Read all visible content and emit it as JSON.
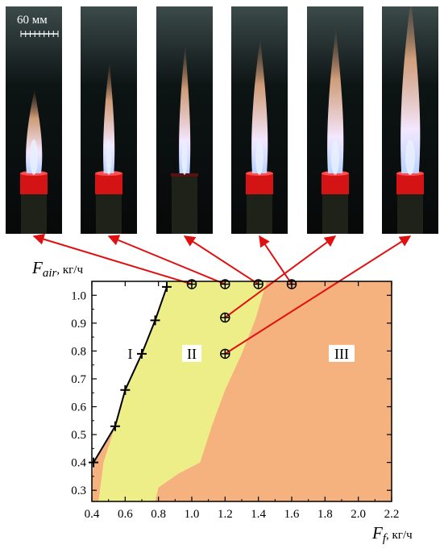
{
  "scale_bar": {
    "label": "60 мм"
  },
  "photos": [
    {
      "fuel_flow": 1.0,
      "air_flow": 1.04,
      "flame_height": 0.3,
      "flame_width": 1.0,
      "base": "red"
    },
    {
      "fuel_flow": 1.2,
      "air_flow": 1.04,
      "flame_height": 0.47,
      "flame_width": 0.7,
      "base": "red"
    },
    {
      "fuel_flow": 1.2,
      "air_flow": 0.92,
      "flame_height": 0.58,
      "flame_width": 0.7,
      "base": "dark"
    },
    {
      "fuel_flow": 1.2,
      "air_flow": 0.79,
      "flame_height": 0.62,
      "flame_width": 1.0,
      "base": "red"
    },
    {
      "fuel_flow": 1.4,
      "air_flow": 1.04,
      "flame_height": 0.68,
      "flame_width": 1.0,
      "base": "red"
    },
    {
      "fuel_flow": 1.6,
      "air_flow": 1.04,
      "flame_height": 0.87,
      "flame_width": 1.2,
      "base": "red"
    }
  ],
  "chart_data": {
    "type": "area",
    "ylabel_main": "F",
    "ylabel_sub": "air",
    "ylabel_unit": ", кг/ч",
    "xlabel_main": "F",
    "xlabel_sub": "f",
    "xlabel_unit": ", кг/ч",
    "xlim": [
      0.4,
      2.2
    ],
    "ylim": [
      0.26,
      1.05
    ],
    "xticks": [
      "0.4",
      "0.6",
      "0.8",
      "1.0",
      "1.2",
      "1.4",
      "1.6",
      "1.8",
      "2.0",
      "2.2"
    ],
    "yticks": [
      "0.3",
      "0.4",
      "0.5",
      "0.6",
      "0.7",
      "0.8",
      "0.9",
      "1.0"
    ],
    "regions": [
      {
        "name": "I",
        "label_x": 0.63,
        "label_y": 0.79,
        "color": "#ffffff"
      },
      {
        "name": "II",
        "label_x": 1.0,
        "label_y": 0.79,
        "color": "#eeee88"
      },
      {
        "name": "III",
        "label_x": 1.9,
        "label_y": 0.79,
        "color": "#f5b27f"
      }
    ],
    "boundary_I": {
      "x": [
        0.41,
        0.54,
        0.6,
        0.7,
        0.78,
        0.85
      ],
      "y": [
        0.4,
        0.53,
        0.66,
        0.79,
        0.91,
        1.03
      ],
      "color": "#000000"
    },
    "boundary_II_lower": {
      "x": [
        0.44,
        0.47,
        0.55,
        0.62,
        0.7,
        0.8,
        0.85
      ],
      "y": [
        0.26,
        0.4,
        0.55,
        0.7,
        0.85,
        0.98,
        1.05
      ]
    },
    "boundary_III": {
      "x": [
        0.78,
        0.8,
        0.92,
        1.05,
        1.12,
        1.2,
        1.3,
        1.38,
        1.45
      ],
      "y": [
        0.26,
        0.31,
        0.36,
        0.4,
        0.53,
        0.66,
        0.79,
        0.91,
        1.05
      ]
    },
    "experiment_points": {
      "x": [
        1.0,
        1.2,
        1.4,
        1.6,
        1.2,
        1.2
      ],
      "y": [
        1.04,
        1.04,
        1.04,
        1.04,
        0.92,
        0.79
      ],
      "color": "#c00000"
    }
  }
}
